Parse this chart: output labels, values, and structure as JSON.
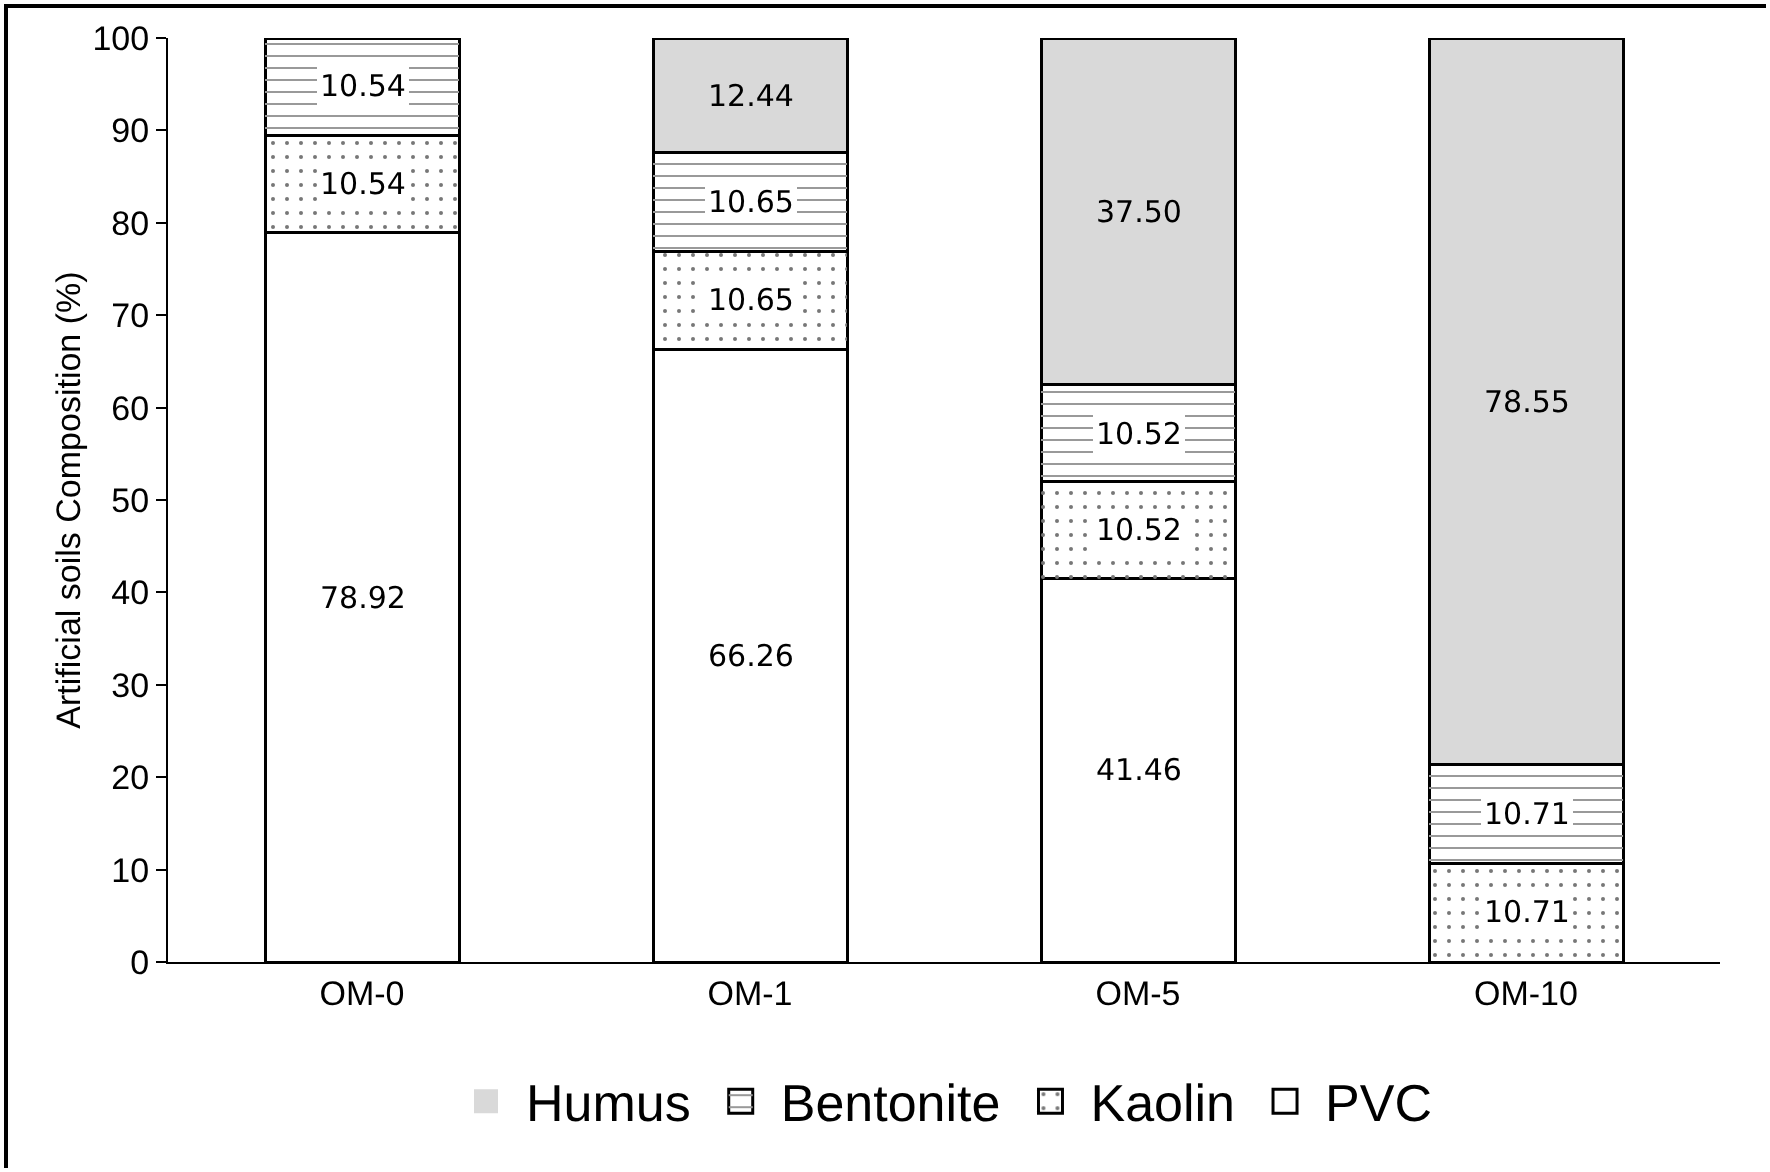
{
  "chart_data": {
    "type": "bar",
    "stacked": true,
    "ylabel": "Artificial soils Composition (%)",
    "categories": [
      "OM-0",
      "OM-1",
      "OM-5",
      "OM-10"
    ],
    "series": [
      {
        "name": "PVC",
        "color": "#ffffff",
        "values": [
          78.92,
          66.26,
          41.46,
          0
        ],
        "value_labels": [
          "78.92",
          "66.26",
          "41.46",
          null
        ]
      },
      {
        "name": "Kaolin",
        "color": "#ffffff",
        "values": [
          10.54,
          10.65,
          10.52,
          10.71
        ],
        "value_labels": [
          "10.54",
          "10.65",
          "10.52",
          "10.71"
        ]
      },
      {
        "name": "Bentonite",
        "color": "#ffffff",
        "values": [
          10.54,
          10.65,
          10.52,
          10.71
        ],
        "value_labels": [
          "10.54",
          "10.65",
          "10.52",
          "10.71"
        ]
      },
      {
        "name": "Humus",
        "color": "#d9d9d9",
        "values": [
          0,
          12.44,
          37.5,
          78.55
        ],
        "value_labels": [
          null,
          "12.44",
          "37.50",
          "78.55"
        ]
      }
    ],
    "ylim": [
      0,
      100
    ],
    "yticks": [
      0,
      10,
      20,
      30,
      40,
      50,
      60,
      70,
      80,
      90,
      100
    ],
    "grid": false,
    "legend": "bottom"
  }
}
